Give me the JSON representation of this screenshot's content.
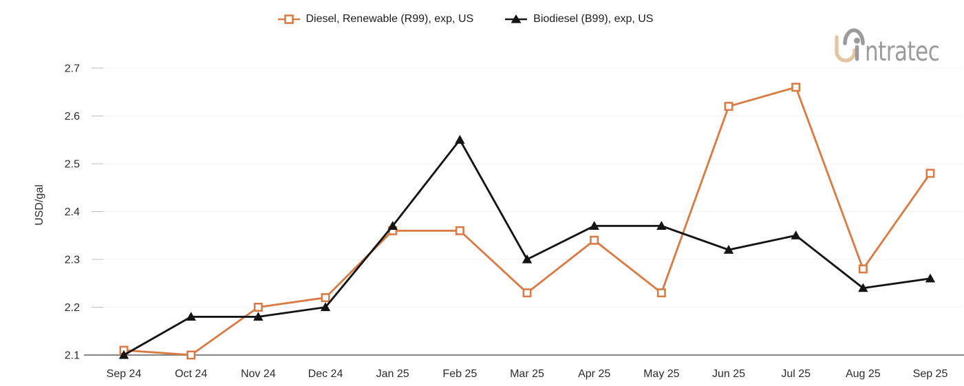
{
  "legend": {
    "items": [
      {
        "label": "Diesel, Renewable (R99), exp, US",
        "marker": "open-square",
        "color": "#d87c46"
      },
      {
        "label": "Biodiesel (B99), exp, US",
        "marker": "filled-triangle",
        "color": "#141414"
      }
    ]
  },
  "logo": {
    "brand": "intratec",
    "text": "ntratec",
    "gray_color": "#9b9b9b",
    "tan_color": "#e4c6a4"
  },
  "colors": {
    "background": "#ffffff",
    "grid": "#f2f2f2",
    "axis": "#848484",
    "tick": "#bdbdbd",
    "text": "#2b2b2b"
  },
  "chart_data": {
    "type": "line",
    "categories": [
      "Sep 24",
      "Oct 24",
      "Nov 24",
      "Dec 24",
      "Jan 25",
      "Feb 25",
      "Mar 25",
      "Apr 25",
      "May 25",
      "Jun 25",
      "Jul 25",
      "Aug 25",
      "Sep 25"
    ],
    "series": [
      {
        "name": "Diesel, Renewable (R99), exp, US",
        "color": "#d87c46",
        "marker": "open-square",
        "values": [
          2.11,
          2.1,
          2.2,
          2.22,
          2.36,
          2.36,
          2.23,
          2.34,
          2.23,
          2.62,
          2.66,
          2.28,
          2.48
        ]
      },
      {
        "name": "Biodiesel (B99), exp, US",
        "color": "#141414",
        "marker": "filled-triangle",
        "values": [
          2.1,
          2.18,
          2.18,
          2.2,
          2.37,
          2.55,
          2.3,
          2.37,
          2.37,
          2.32,
          2.35,
          2.24,
          2.26
        ]
      }
    ],
    "ylabel": "USD/gal",
    "ylim": [
      2.1,
      2.7
    ],
    "ytick_step": 0.1,
    "ytick_labels": [
      "2.1",
      "2.2",
      "2.3",
      "2.4",
      "2.5",
      "2.6",
      "2.7"
    ],
    "grid": true,
    "legend_position": "top"
  }
}
